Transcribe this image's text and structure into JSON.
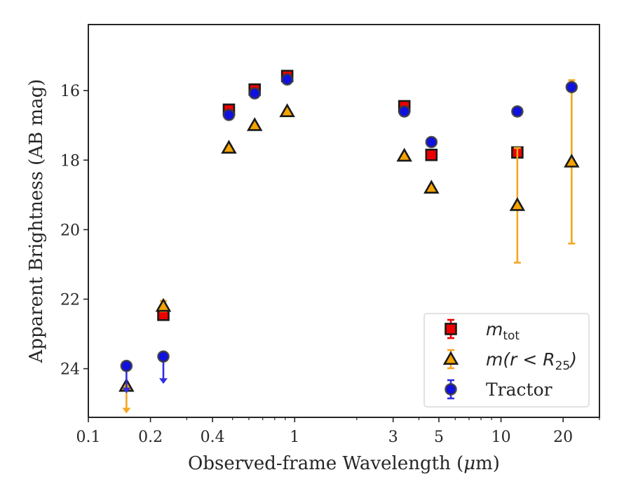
{
  "chart_data": {
    "type": "scatter",
    "xlabel_main": "Observed-frame Wavelength (",
    "xlabel_mu": "μ",
    "xlabel_unit": "m)",
    "ylabel": "Apparent Brightness (AB mag)",
    "xscale": "log",
    "yaxis_inverted": true,
    "xlim": [
      0.1,
      30
    ],
    "ylim": [
      25.4,
      14.1
    ],
    "x_ticks": [
      {
        "value": 0.1,
        "label": "0.1"
      },
      {
        "value": 0.2,
        "label": "0.2"
      },
      {
        "value": 0.4,
        "label": "0.4"
      },
      {
        "value": 1,
        "label": "1"
      },
      {
        "value": 3,
        "label": "3"
      },
      {
        "value": 5,
        "label": "5"
      },
      {
        "value": 10,
        "label": "10"
      },
      {
        "value": 20,
        "label": "20"
      }
    ],
    "y_ticks": [
      {
        "value": 16,
        "label": "16"
      },
      {
        "value": 18,
        "label": "18"
      },
      {
        "value": 20,
        "label": "20"
      },
      {
        "value": 22,
        "label": "22"
      },
      {
        "value": 24,
        "label": "24"
      }
    ],
    "grid": false,
    "legend_position": "lower-right",
    "series": [
      {
        "key": "mtot",
        "legend_main": "m",
        "legend_sub": "tot",
        "marker": "square",
        "color": "#ee0000",
        "errcolor": "#ee0000",
        "points": [
          {
            "x": 0.153,
            "y": null,
            "err": 0,
            "upper_limit": false
          },
          {
            "x": 0.231,
            "y": 22.45,
            "err": 0.1,
            "upper_limit": false
          },
          {
            "x": 0.48,
            "y": 16.55,
            "err": 0.05,
            "upper_limit": false
          },
          {
            "x": 0.64,
            "y": 15.97,
            "err": 0.05,
            "upper_limit": false
          },
          {
            "x": 0.92,
            "y": 15.58,
            "err": 0.05,
            "upper_limit": false
          },
          {
            "x": 3.4,
            "y": 16.45,
            "err": 0.05,
            "upper_limit": false
          },
          {
            "x": 4.6,
            "y": 17.85,
            "err": 0.05,
            "upper_limit": false
          },
          {
            "x": 12.0,
            "y": 17.78,
            "err": 0.08,
            "upper_limit": false
          },
          {
            "x": 22.0,
            "y": null,
            "err": 0,
            "upper_limit": false
          }
        ]
      },
      {
        "key": "r25",
        "legend_main": "m(r < R",
        "legend_sub": "25",
        "legend_tail": ")",
        "marker": "triangle",
        "color": "#f5a300",
        "errcolor": "#f5a623",
        "points": [
          {
            "x": 0.153,
            "y": 24.5,
            "err": 0,
            "upper_limit": true
          },
          {
            "x": 0.231,
            "y": 22.2,
            "err": 0.15,
            "upper_limit": false
          },
          {
            "x": 0.48,
            "y": 17.65,
            "err": 0.05,
            "upper_limit": false
          },
          {
            "x": 0.64,
            "y": 17.0,
            "err": 0.05,
            "upper_limit": false
          },
          {
            "x": 0.92,
            "y": 16.6,
            "err": 0.05,
            "upper_limit": false
          },
          {
            "x": 3.4,
            "y": 17.88,
            "err": 0.05,
            "upper_limit": false
          },
          {
            "x": 4.6,
            "y": 18.8,
            "err": 0.05,
            "upper_limit": false
          },
          {
            "x": 12.0,
            "y": 19.3,
            "err": 1.65,
            "upper_limit": false
          },
          {
            "x": 22.0,
            "y": 18.05,
            "err": 2.35,
            "upper_limit": false
          }
        ]
      },
      {
        "key": "tractor",
        "legend_main": "Tractor",
        "marker": "circle",
        "color": "#1010e0",
        "errcolor": "#3030e0",
        "points": [
          {
            "x": 0.153,
            "y": 23.92,
            "err": 0,
            "upper_limit": true
          },
          {
            "x": 0.231,
            "y": 23.65,
            "err": 0,
            "upper_limit": true
          },
          {
            "x": 0.48,
            "y": 16.7,
            "err": 0.05,
            "upper_limit": false
          },
          {
            "x": 0.64,
            "y": 16.08,
            "err": 0.05,
            "upper_limit": false
          },
          {
            "x": 0.92,
            "y": 15.68,
            "err": 0.05,
            "upper_limit": false
          },
          {
            "x": 3.4,
            "y": 16.6,
            "err": 0.05,
            "upper_limit": false
          },
          {
            "x": 4.6,
            "y": 17.48,
            "err": 0.05,
            "upper_limit": false
          },
          {
            "x": 12.0,
            "y": 16.6,
            "err": 0.05,
            "upper_limit": false
          },
          {
            "x": 22.0,
            "y": 15.9,
            "err": 0.05,
            "upper_limit": false
          }
        ]
      }
    ]
  }
}
